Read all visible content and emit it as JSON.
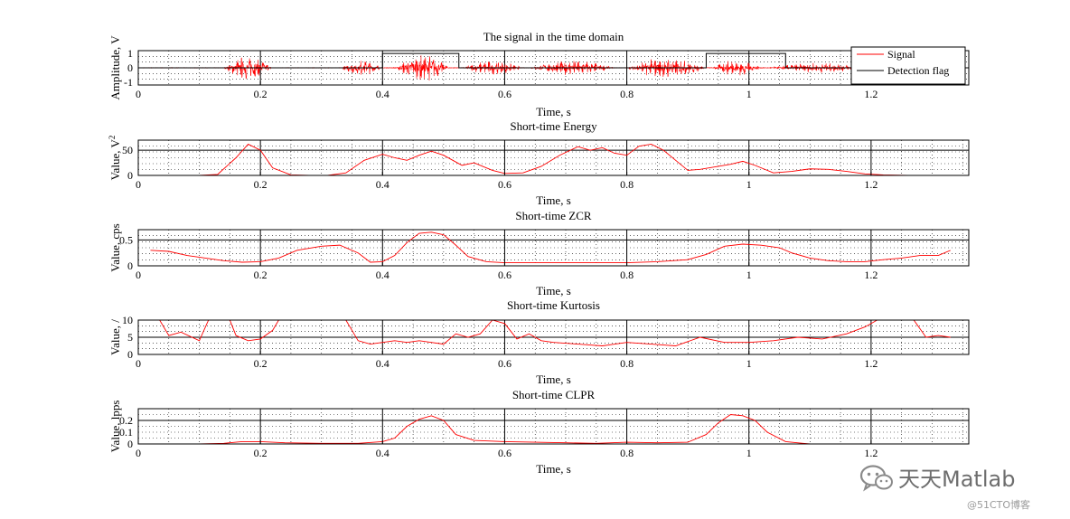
{
  "chart_data": [
    {
      "type": "line",
      "title": "The signal in the time domain",
      "xlabel": "Time, s",
      "ylabel": "Amplitude, V",
      "xlim": [
        0,
        1.36
      ],
      "ylim": [
        -1.2,
        1.2
      ],
      "xticks": [
        "0",
        "0.2",
        "0.4",
        "0.6",
        "0.8",
        "1",
        "1.2"
      ],
      "yticks": [
        "-1",
        "0",
        "1"
      ],
      "ytick_values": [
        -1,
        0,
        1
      ],
      "threshold": null,
      "grid": true,
      "legend": {
        "placement": "top-right",
        "entries": [
          "Signal",
          "Detection flag"
        ]
      },
      "series": [
        {
          "name": "Signal",
          "color": "#ff0000",
          "kind": "waveform",
          "bursts": [
            [
              0.14,
              0.22,
              0.85
            ],
            [
              0.33,
              0.4,
              0.55
            ],
            [
              0.42,
              0.51,
              1.0
            ],
            [
              0.53,
              0.63,
              0.5
            ],
            [
              0.64,
              0.78,
              0.55
            ],
            [
              0.8,
              0.93,
              0.75
            ],
            [
              0.94,
              1.02,
              0.6
            ],
            [
              1.03,
              1.2,
              0.35
            ]
          ]
        },
        {
          "name": "Detection flag",
          "color": "#000000",
          "kind": "step",
          "x": [
            0,
            0.4,
            0.4,
            0.525,
            0.525,
            0.93,
            0.93,
            1.06,
            1.06,
            1.36
          ],
          "y": [
            0,
            0,
            1,
            1,
            0,
            0,
            1,
            1,
            0,
            0
          ]
        }
      ]
    },
    {
      "type": "line",
      "title": "Short-time Energy",
      "xlabel": "Time, s",
      "ylabel": "Value, V",
      "ylabel_superscript": "2",
      "xlim": [
        0,
        1.36
      ],
      "ylim": [
        0,
        70
      ],
      "xticks": [
        "0",
        "0.2",
        "0.4",
        "0.6",
        "0.8",
        "1",
        "1.2"
      ],
      "yticks": [
        "0",
        "50"
      ],
      "ytick_values": [
        0,
        50
      ],
      "threshold": 50,
      "grid": true,
      "series": [
        {
          "color": "#ff0000",
          "x": [
            0.02,
            0.06,
            0.1,
            0.13,
            0.16,
            0.18,
            0.2,
            0.22,
            0.25,
            0.28,
            0.31,
            0.34,
            0.37,
            0.4,
            0.42,
            0.44,
            0.46,
            0.48,
            0.5,
            0.53,
            0.55,
            0.58,
            0.6,
            0.63,
            0.66,
            0.69,
            0.72,
            0.74,
            0.76,
            0.78,
            0.8,
            0.82,
            0.84,
            0.86,
            0.88,
            0.9,
            0.92,
            0.95,
            0.97,
            0.99,
            1.01,
            1.04,
            1.07,
            1.1,
            1.13,
            1.16,
            1.19,
            1.22,
            1.26,
            1.3,
            1.33
          ],
          "y": [
            0,
            0,
            0,
            2,
            35,
            62,
            50,
            15,
            1,
            0,
            0,
            5,
            30,
            42,
            35,
            30,
            40,
            48,
            40,
            20,
            25,
            10,
            4,
            5,
            18,
            40,
            57,
            50,
            55,
            44,
            40,
            58,
            62,
            50,
            30,
            10,
            12,
            18,
            22,
            28,
            20,
            5,
            8,
            13,
            12,
            8,
            3,
            1,
            0,
            0,
            0
          ]
        }
      ]
    },
    {
      "type": "line",
      "title": "Short-time ZCR",
      "xlabel": "Time, s",
      "ylabel": "Value, cps",
      "xlim": [
        0,
        1.36
      ],
      "ylim": [
        0,
        0.7
      ],
      "xticks": [
        "0",
        "0.2",
        "0.4",
        "0.6",
        "0.8",
        "1",
        "1.2"
      ],
      "yticks": [
        "0",
        "0.5"
      ],
      "ytick_values": [
        0,
        0.5
      ],
      "threshold": 0.5,
      "grid": true,
      "series": [
        {
          "color": "#ff0000",
          "x": [
            0.02,
            0.05,
            0.08,
            0.11,
            0.14,
            0.17,
            0.2,
            0.23,
            0.26,
            0.3,
            0.33,
            0.36,
            0.38,
            0.4,
            0.42,
            0.44,
            0.46,
            0.48,
            0.5,
            0.52,
            0.54,
            0.57,
            0.6,
            0.65,
            0.7,
            0.75,
            0.8,
            0.85,
            0.9,
            0.93,
            0.96,
            0.99,
            1.02,
            1.05,
            1.07,
            1.1,
            1.13,
            1.16,
            1.19,
            1.22,
            1.25,
            1.28,
            1.31,
            1.33
          ],
          "y": [
            0.3,
            0.28,
            0.2,
            0.15,
            0.1,
            0.07,
            0.08,
            0.15,
            0.3,
            0.38,
            0.4,
            0.25,
            0.07,
            0.08,
            0.2,
            0.45,
            0.63,
            0.65,
            0.6,
            0.4,
            0.18,
            0.08,
            0.06,
            0.06,
            0.06,
            0.06,
            0.06,
            0.08,
            0.12,
            0.22,
            0.38,
            0.42,
            0.4,
            0.35,
            0.25,
            0.15,
            0.1,
            0.08,
            0.08,
            0.12,
            0.15,
            0.2,
            0.2,
            0.3
          ]
        }
      ]
    },
    {
      "type": "line",
      "title": "Short-time Kurtosis",
      "xlabel": "Time, s",
      "ylabel": "Value, /",
      "xlim": [
        0,
        1.36
      ],
      "ylim": [
        0,
        10
      ],
      "xticks": [
        "0",
        "0.2",
        "0.4",
        "0.6",
        "0.8",
        "1",
        "1.2"
      ],
      "yticks": [
        "0",
        "5",
        "10"
      ],
      "ytick_values": [
        0,
        5,
        10
      ],
      "threshold": 5,
      "grid": true,
      "series": [
        {
          "color": "#ff0000",
          "x": [
            0.025,
            0.035,
            0.05,
            0.07,
            0.1,
            0.115
          ],
          "y": [
            12,
            10,
            5.5,
            6.5,
            4,
            10
          ]
        },
        {
          "color": "#ff0000",
          "x": [
            0.14,
            0.15,
            0.16,
            0.18,
            0.2,
            0.22,
            0.23
          ],
          "y": [
            12,
            10,
            5.5,
            4,
            4.5,
            7,
            10
          ]
        },
        {
          "color": "#ff0000",
          "x": [
            0.33,
            0.34,
            0.36,
            0.38,
            0.4,
            0.42,
            0.44,
            0.46,
            0.48,
            0.5,
            0.52,
            0.54,
            0.56,
            0.58,
            0.6,
            0.62,
            0.64,
            0.66,
            0.68,
            0.72,
            0.76,
            0.8,
            0.84,
            0.88,
            0.92,
            0.96,
            1.0,
            1.04,
            1.08,
            1.12,
            1.16,
            1.19,
            1.21
          ],
          "y": [
            12,
            10,
            4,
            3,
            3.5,
            4,
            3.5,
            4,
            3.5,
            3,
            6,
            5,
            6,
            10,
            9,
            4.5,
            6,
            4,
            3.5,
            3,
            2.5,
            3.5,
            3,
            2.5,
            5,
            3.5,
            3.5,
            4,
            5,
            4.5,
            6,
            8,
            10
          ]
        },
        {
          "color": "#ff0000",
          "x": [
            1.27,
            1.29,
            1.31,
            1.33
          ],
          "y": [
            10,
            5,
            5.5,
            5
          ]
        }
      ]
    },
    {
      "type": "line",
      "title": "Short-time CLPR",
      "xlabel": "Time, s",
      "ylabel": "Value, lpps",
      "xlim": [
        0,
        1.36
      ],
      "ylim": [
        0,
        0.3
      ],
      "xticks": [
        "0",
        "0.2",
        "0.4",
        "0.6",
        "0.8",
        "1",
        "1.2"
      ],
      "yticks": [
        "0",
        "0.1",
        "0.2"
      ],
      "ytick_values": [
        0,
        0.1,
        0.2
      ],
      "threshold": 0.2,
      "grid": true,
      "series": [
        {
          "color": "#ff0000",
          "x": [
            0.02,
            0.1,
            0.14,
            0.17,
            0.2,
            0.24,
            0.3,
            0.36,
            0.4,
            0.42,
            0.44,
            0.46,
            0.48,
            0.5,
            0.52,
            0.55,
            0.6,
            0.65,
            0.7,
            0.75,
            0.8,
            0.85,
            0.9,
            0.93,
            0.95,
            0.97,
            0.99,
            1.01,
            1.03,
            1.06,
            1.1,
            1.15,
            1.2,
            1.25,
            1.3,
            1.33
          ],
          "y": [
            0.0,
            0.0,
            0.005,
            0.02,
            0.02,
            0.01,
            0.005,
            0.005,
            0.02,
            0.05,
            0.15,
            0.21,
            0.24,
            0.2,
            0.08,
            0.03,
            0.02,
            0.015,
            0.01,
            0.005,
            0.015,
            0.01,
            0.015,
            0.08,
            0.18,
            0.25,
            0.24,
            0.2,
            0.1,
            0.02,
            0.0,
            0.0,
            0.0,
            0.0,
            0.0,
            0.0
          ]
        }
      ]
    }
  ],
  "watermark": {
    "brand": "天天Matlab",
    "source": "@51CTO博客",
    "icon": "wechat-icon"
  }
}
